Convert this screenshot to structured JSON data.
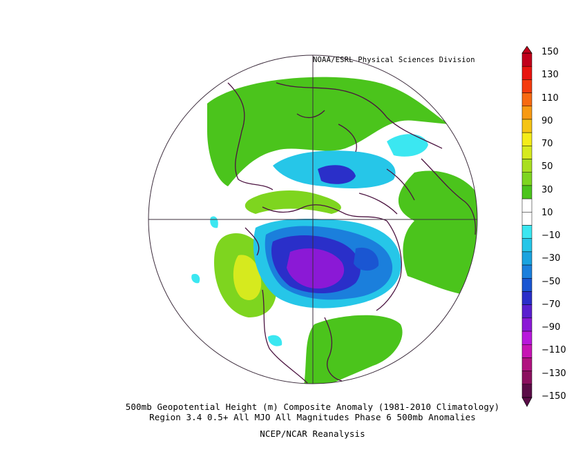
{
  "credit": "NOAA/ESRL Physical Sciences Division",
  "titles": {
    "line1": "500mb Geopotential Height (m) Composite Anomaly (1981-2010 Climatology)",
    "line2": "Region 3.4 0.5+ All MJO All Magnitudes  Phase 6 500mb  Anomalies",
    "line3": "NCEP/NCAR Reanalysis"
  },
  "colorbar": {
    "labels": [
      "150",
      "130",
      "110",
      "90",
      "70",
      "50",
      "30",
      "10",
      "−10",
      "−30",
      "−50",
      "−70",
      "−90",
      "−110",
      "−130",
      "−150"
    ],
    "colors": [
      "#c1001b",
      "#e8140f",
      "#f43c0e",
      "#f76a12",
      "#f89a13",
      "#f5c414",
      "#f4ec19",
      "#d6ea1e",
      "#a9df20",
      "#7ed51f",
      "#4bc41c",
      "#ffffff",
      "#ffffff",
      "#3be7f1",
      "#26c6e8",
      "#1aa3df",
      "#1b7fdc",
      "#1a56d2",
      "#2a2fc9",
      "#5a1fcf",
      "#8b19d6",
      "#b818dc",
      "#c714b4",
      "#b0127f",
      "#8b115f",
      "#5a0d47"
    ]
  },
  "projection": "north-polar-stereographic"
}
